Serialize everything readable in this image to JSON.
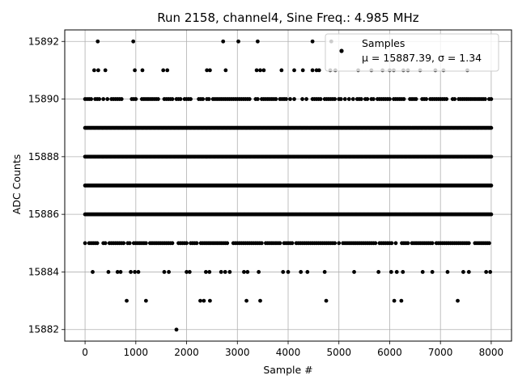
{
  "chart_data": {
    "type": "scatter",
    "title": "Run 2158, channel4, Sine Freq.: 4.985 MHz",
    "xlabel": "Sample #",
    "ylabel": "ADC Counts",
    "xlim": [
      -400,
      8400
    ],
    "ylim": [
      15881.6,
      15892.4
    ],
    "xticks": [
      0,
      1000,
      2000,
      3000,
      4000,
      5000,
      6000,
      7000,
      8000
    ],
    "yticks": [
      15882,
      15884,
      15886,
      15888,
      15890,
      15892
    ],
    "grid": true,
    "marker_color": "#000000",
    "legend": {
      "placement": "top-right",
      "entries": [
        {
          "name": "Samples",
          "stats": "μ = 15887.39, σ = 1.34"
        }
      ]
    },
    "series": [
      {
        "name": "Samples",
        "sample_count": 8000,
        "levels": {
          "15886": "dense",
          "15887": "dense",
          "15888": "dense",
          "15889": "dense",
          "15885": "medium",
          "15890": "medium"
        },
        "sparse_points": [
          {
            "x": 250,
            "y": 15892
          },
          {
            "x": 950,
            "y": 15892
          },
          {
            "x": 2720,
            "y": 15892
          },
          {
            "x": 3020,
            "y": 15892
          },
          {
            "x": 3400,
            "y": 15892
          },
          {
            "x": 4480,
            "y": 15892
          },
          {
            "x": 4850,
            "y": 15892
          },
          {
            "x": 180,
            "y": 15891
          },
          {
            "x": 260,
            "y": 15891
          },
          {
            "x": 400,
            "y": 15891
          },
          {
            "x": 980,
            "y": 15891
          },
          {
            "x": 1130,
            "y": 15891
          },
          {
            "x": 1540,
            "y": 15891
          },
          {
            "x": 1620,
            "y": 15891
          },
          {
            "x": 2400,
            "y": 15891
          },
          {
            "x": 2460,
            "y": 15891
          },
          {
            "x": 2770,
            "y": 15891
          },
          {
            "x": 3380,
            "y": 15891
          },
          {
            "x": 3450,
            "y": 15891
          },
          {
            "x": 3520,
            "y": 15891
          },
          {
            "x": 3870,
            "y": 15891
          },
          {
            "x": 4120,
            "y": 15891
          },
          {
            "x": 4290,
            "y": 15891
          },
          {
            "x": 4480,
            "y": 15891
          },
          {
            "x": 4560,
            "y": 15891
          },
          {
            "x": 4610,
            "y": 15891
          },
          {
            "x": 4830,
            "y": 15891
          },
          {
            "x": 4930,
            "y": 15891
          },
          {
            "x": 5380,
            "y": 15891
          },
          {
            "x": 5640,
            "y": 15891
          },
          {
            "x": 5860,
            "y": 15891
          },
          {
            "x": 6000,
            "y": 15891
          },
          {
            "x": 6080,
            "y": 15891
          },
          {
            "x": 6270,
            "y": 15891
          },
          {
            "x": 6360,
            "y": 15891
          },
          {
            "x": 6600,
            "y": 15891
          },
          {
            "x": 6900,
            "y": 15891
          },
          {
            "x": 7060,
            "y": 15891
          },
          {
            "x": 7530,
            "y": 15891
          },
          {
            "x": 150,
            "y": 15884
          },
          {
            "x": 460,
            "y": 15884
          },
          {
            "x": 640,
            "y": 15884
          },
          {
            "x": 700,
            "y": 15884
          },
          {
            "x": 900,
            "y": 15884
          },
          {
            "x": 980,
            "y": 15884
          },
          {
            "x": 1050,
            "y": 15884
          },
          {
            "x": 1560,
            "y": 15884
          },
          {
            "x": 1650,
            "y": 15884
          },
          {
            "x": 2000,
            "y": 15884
          },
          {
            "x": 2060,
            "y": 15884
          },
          {
            "x": 2380,
            "y": 15884
          },
          {
            "x": 2450,
            "y": 15884
          },
          {
            "x": 2680,
            "y": 15884
          },
          {
            "x": 2760,
            "y": 15884
          },
          {
            "x": 2850,
            "y": 15884
          },
          {
            "x": 3130,
            "y": 15884
          },
          {
            "x": 3200,
            "y": 15884
          },
          {
            "x": 3420,
            "y": 15884
          },
          {
            "x": 3900,
            "y": 15884
          },
          {
            "x": 4000,
            "y": 15884
          },
          {
            "x": 4250,
            "y": 15884
          },
          {
            "x": 4380,
            "y": 15884
          },
          {
            "x": 4720,
            "y": 15884
          },
          {
            "x": 5300,
            "y": 15884
          },
          {
            "x": 5780,
            "y": 15884
          },
          {
            "x": 6030,
            "y": 15884
          },
          {
            "x": 6140,
            "y": 15884
          },
          {
            "x": 6260,
            "y": 15884
          },
          {
            "x": 6650,
            "y": 15884
          },
          {
            "x": 6840,
            "y": 15884
          },
          {
            "x": 7140,
            "y": 15884
          },
          {
            "x": 7450,
            "y": 15884
          },
          {
            "x": 7560,
            "y": 15884
          },
          {
            "x": 7900,
            "y": 15884
          },
          {
            "x": 7980,
            "y": 15884
          },
          {
            "x": 820,
            "y": 15883
          },
          {
            "x": 1200,
            "y": 15883
          },
          {
            "x": 2270,
            "y": 15883
          },
          {
            "x": 2340,
            "y": 15883
          },
          {
            "x": 2460,
            "y": 15883
          },
          {
            "x": 3180,
            "y": 15883
          },
          {
            "x": 3450,
            "y": 15883
          },
          {
            "x": 4750,
            "y": 15883
          },
          {
            "x": 6090,
            "y": 15883
          },
          {
            "x": 6230,
            "y": 15883
          },
          {
            "x": 7340,
            "y": 15883
          },
          {
            "x": 1800,
            "y": 15882
          }
        ]
      }
    ]
  }
}
